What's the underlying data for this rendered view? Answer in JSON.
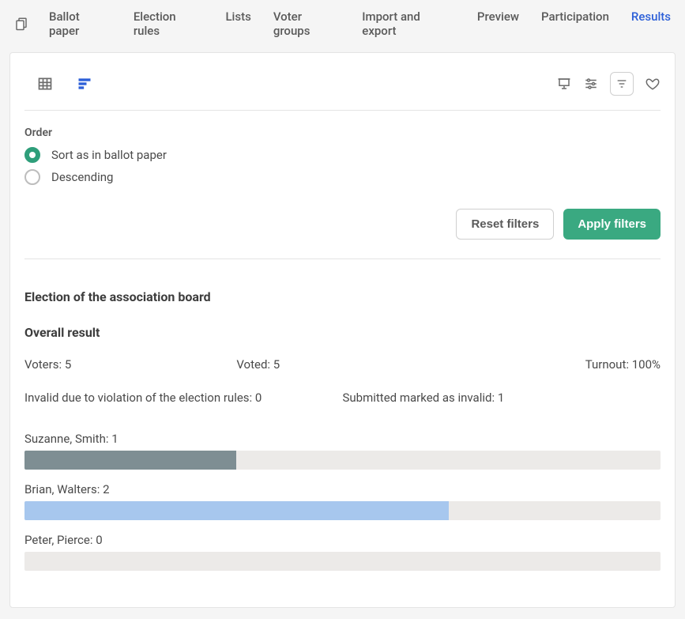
{
  "nav": {
    "tabs": [
      {
        "label": "Ballot paper",
        "active": false
      },
      {
        "label": "Election rules",
        "active": false
      },
      {
        "label": "Lists",
        "active": false
      },
      {
        "label": "Voter groups",
        "active": false
      },
      {
        "label": "Import and export",
        "active": false
      },
      {
        "label": "Preview",
        "active": false
      },
      {
        "label": "Participation",
        "active": false
      },
      {
        "label": "Results",
        "active": true
      }
    ]
  },
  "filters": {
    "order_title": "Order",
    "options": [
      {
        "label": "Sort as in ballot paper",
        "checked": true
      },
      {
        "label": "Descending",
        "checked": false
      }
    ],
    "reset_label": "Reset filters",
    "apply_label": "Apply filters"
  },
  "results": {
    "title": "Election of the association board",
    "subtitle": "Overall result",
    "stats": {
      "voters_label": "Voters",
      "voters_value": 5,
      "voted_label": "Voted",
      "voted_value": 5,
      "turnout_label": "Turnout",
      "turnout_value": "100%",
      "invalid_rules_label": "Invalid due to violation of the election rules",
      "invalid_rules_value": 0,
      "invalid_marked_label": "Submitted marked as invalid",
      "invalid_marked_value": 1
    },
    "chart": {
      "type": "bar",
      "track_color": "#eceae8",
      "max_value": 3,
      "candidates": [
        {
          "name": "Suzanne, Smith",
          "value": 1,
          "bar_color": "#7e8e93",
          "percent": 33.3
        },
        {
          "name": "Brian, Walters",
          "value": 2,
          "bar_color": "#a7c7ee",
          "percent": 66.7
        },
        {
          "name": "Peter, Pierce",
          "value": 0,
          "bar_color": "#7e8e93",
          "percent": 0
        }
      ]
    }
  },
  "colors": {
    "accent_blue": "#2c5fd8",
    "accent_green": "#3aa981",
    "border": "#e4e4e4"
  }
}
